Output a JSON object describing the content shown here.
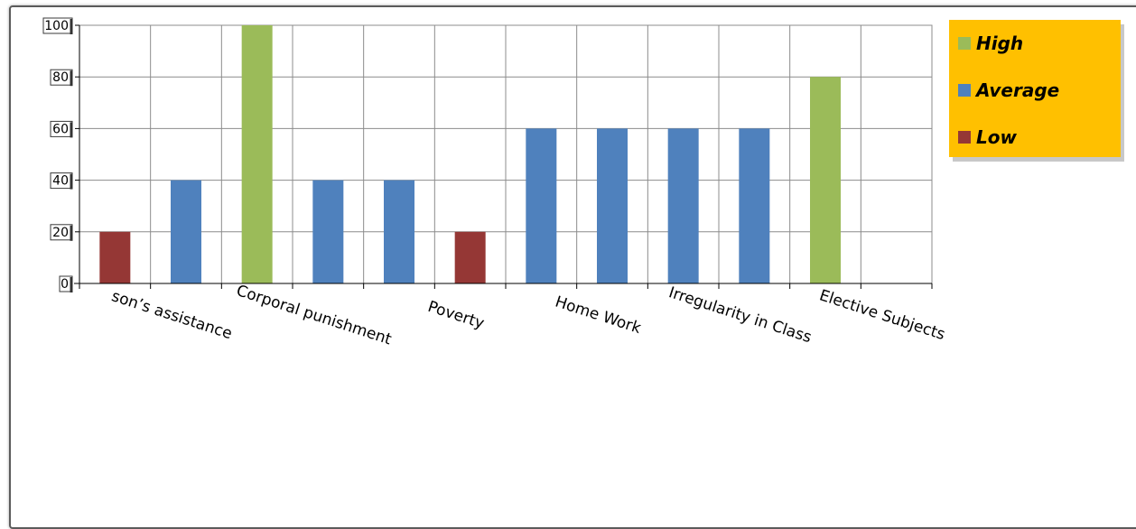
{
  "chart_data": {
    "type": "bar",
    "title": "",
    "xlabel": "",
    "ylabel": "",
    "ylim": [
      0,
      100
    ],
    "yticks": [
      0,
      20,
      40,
      60,
      80,
      100
    ],
    "grid": true,
    "legend_position": "top-right",
    "categories": [
      "son’s assistance",
      "Corporal punishment",
      "Poverty",
      "Home Work",
      "Irregularity in Class",
      "Elective Subjects"
    ],
    "bars": [
      {
        "category_index": 0,
        "value": 20,
        "level": "Low"
      },
      {
        "category_index": 0,
        "value": 40,
        "level": "Average"
      },
      {
        "category_index": 1,
        "value": 100,
        "level": "High"
      },
      {
        "category_index": 1,
        "value": 40,
        "level": "Average"
      },
      {
        "category_index": 2,
        "value": 40,
        "level": "Average"
      },
      {
        "category_index": 2,
        "value": 20,
        "level": "Low"
      },
      {
        "category_index": 3,
        "value": 60,
        "level": "Average"
      },
      {
        "category_index": 3,
        "value": 60,
        "level": "Average"
      },
      {
        "category_index": 4,
        "value": 60,
        "level": "Average"
      },
      {
        "category_index": 4,
        "value": 60,
        "level": "Average"
      },
      {
        "category_index": 5,
        "value": 80,
        "level": "High"
      }
    ],
    "legend": [
      {
        "name": "High",
        "color": "#9bbb59"
      },
      {
        "name": "Average",
        "color": "#4f81bd"
      },
      {
        "name": "Low",
        "color": "#953735"
      }
    ],
    "colors": {
      "legend_background": "#ffc000",
      "grid": "#8c8c8c"
    }
  }
}
